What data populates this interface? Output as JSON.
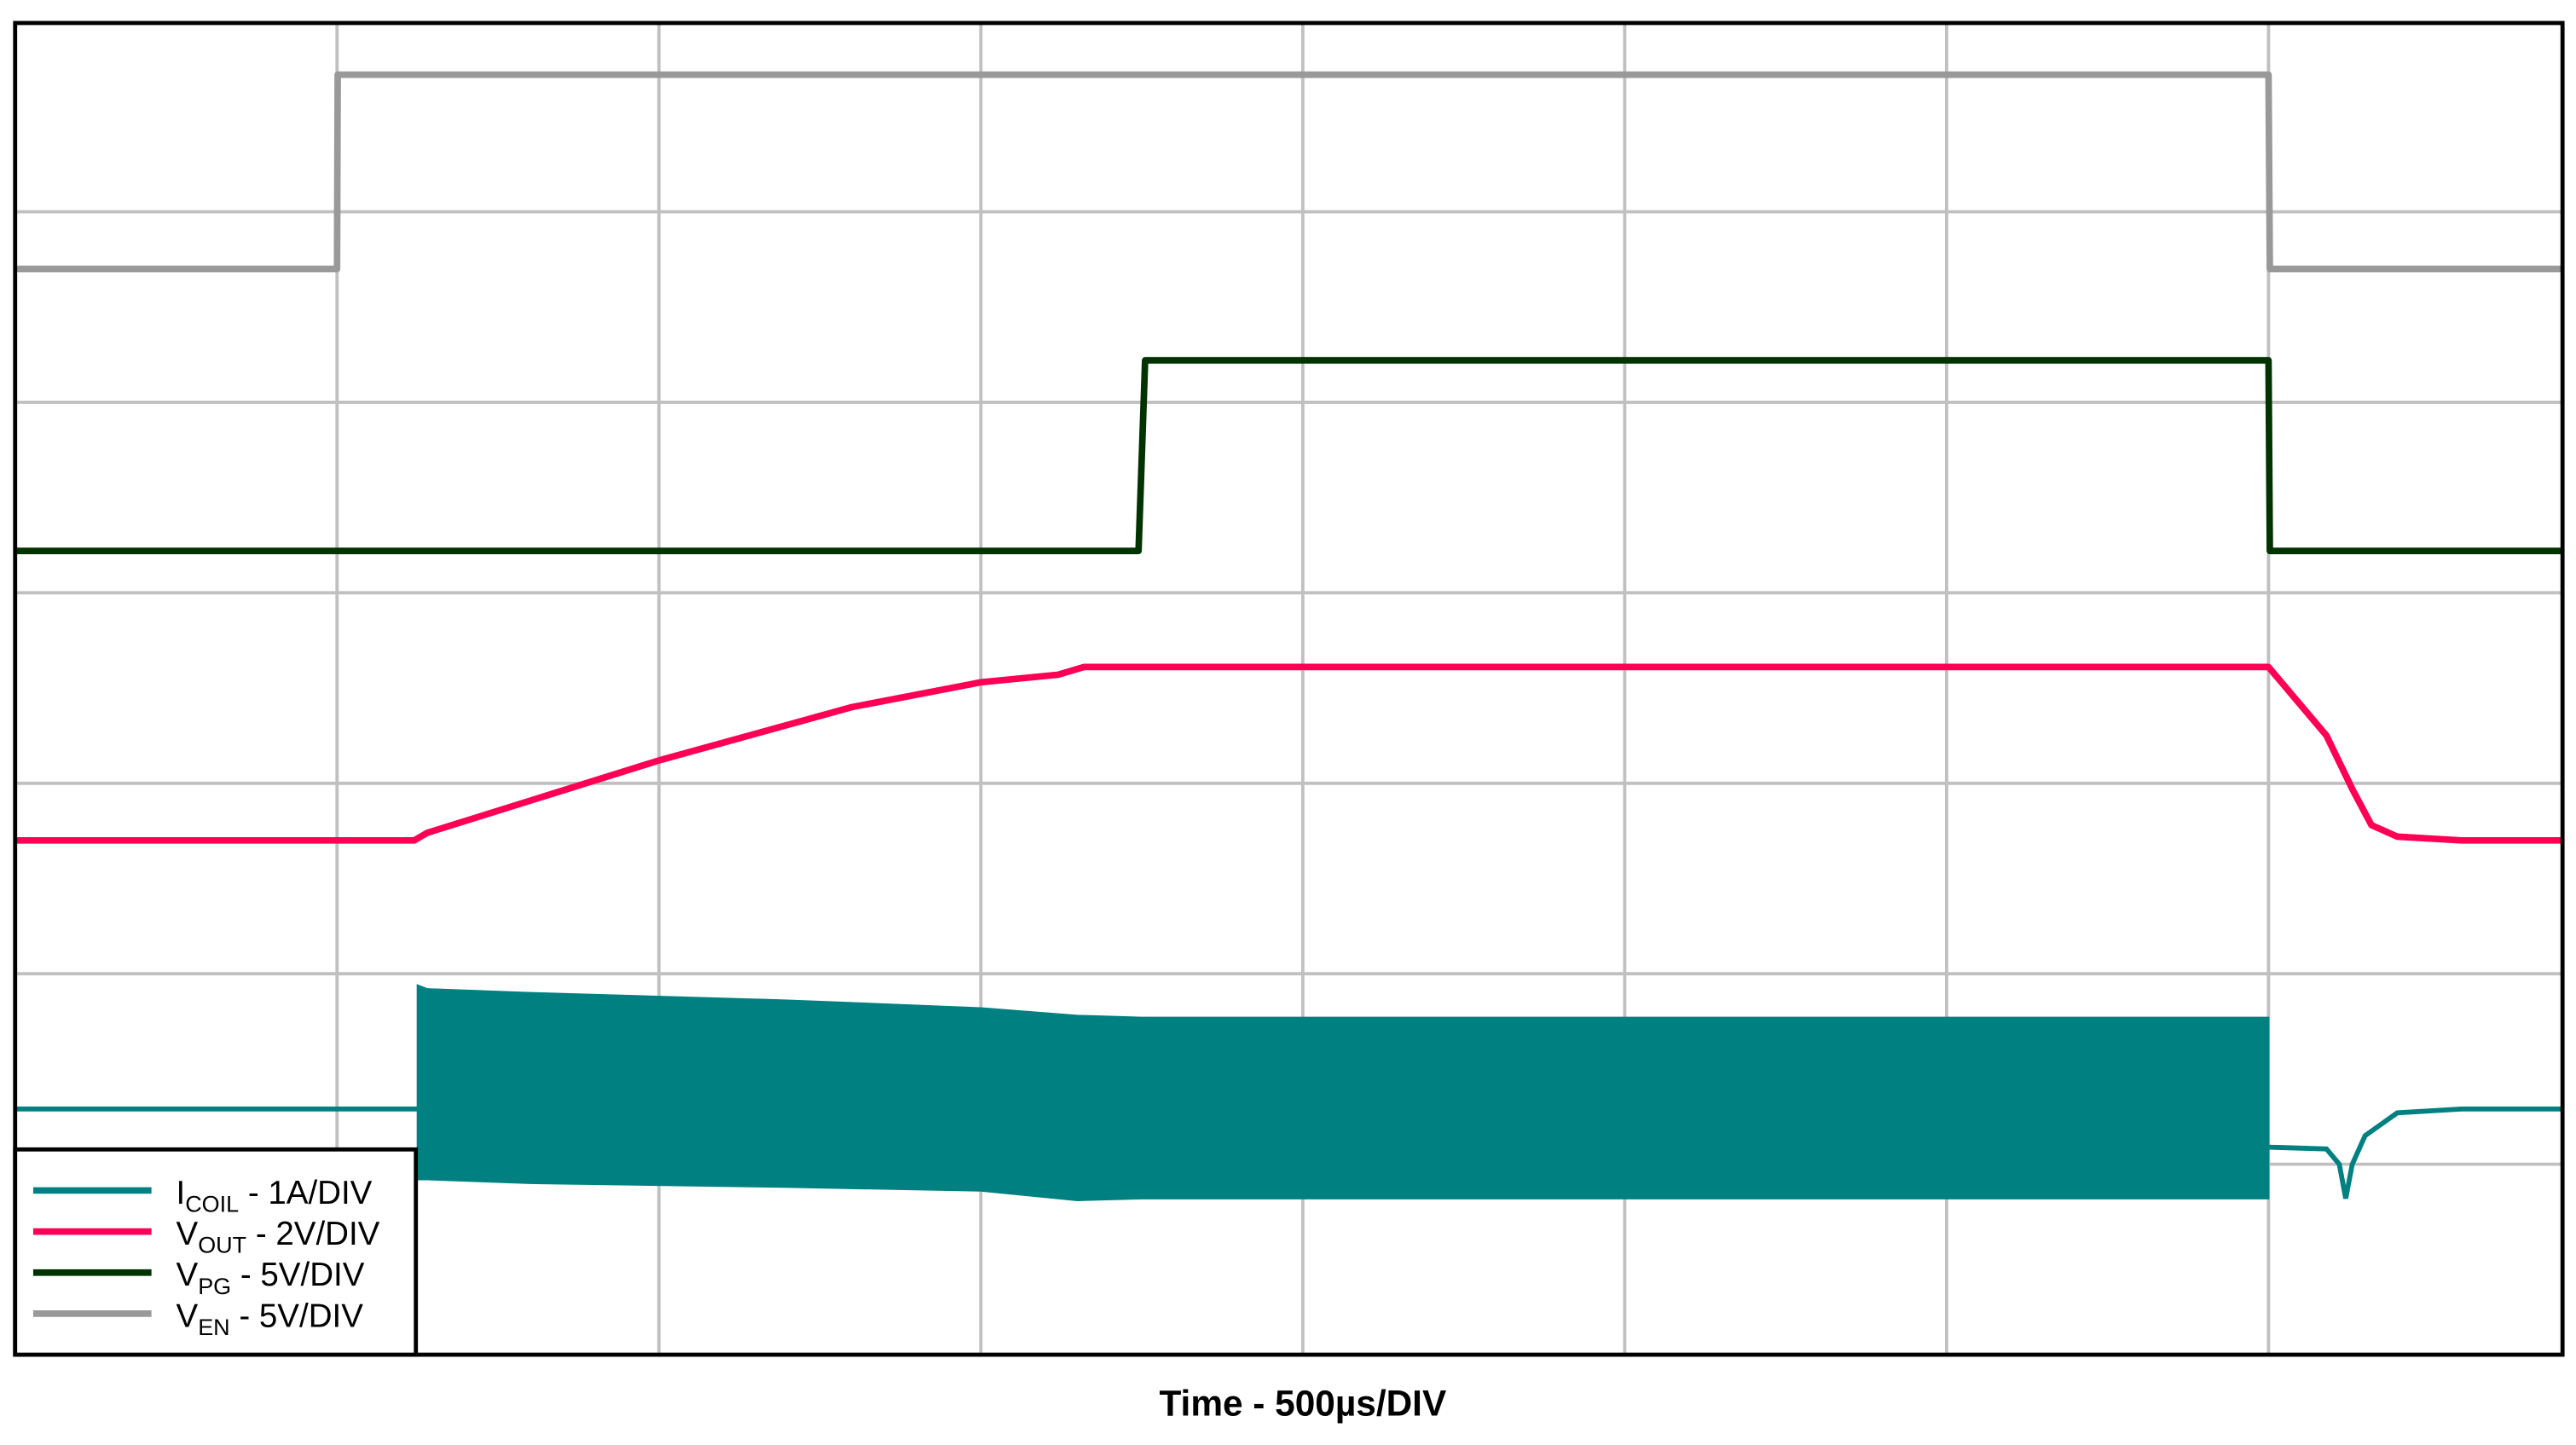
{
  "chart_data": {
    "type": "line",
    "title": "",
    "xlabel": "Time - 500µs/DIV",
    "ylabel": "",
    "x_units": "µs",
    "y_units": "divisions",
    "xlim": [
      0,
      3955
    ],
    "ylim": [
      0,
      7
    ],
    "grid": true,
    "grid_divisions": {
      "x": 8,
      "y": 7
    },
    "legend_position": "bottom-left",
    "series": [
      {
        "name": "I_COIL - 1A/DIV",
        "symbol": "I",
        "sub": "COIL",
        "scale": " - 1A/DIV",
        "color": "#008080",
        "kind": "switching-band",
        "baseline": [
          [
            0,
            1.29
          ],
          [
            625,
            1.29
          ]
        ],
        "band_x": [
          625,
          640,
          800,
          1200,
          1500,
          1650,
          1750,
          3500
        ],
        "band_top": [
          1.94,
          1.92,
          1.9,
          1.86,
          1.82,
          1.78,
          1.77,
          1.77
        ],
        "band_bottom": [
          0.92,
          0.92,
          0.9,
          0.88,
          0.86,
          0.81,
          0.82,
          0.82
        ],
        "tail": [
          [
            3500,
            1.09
          ],
          [
            3590,
            1.08
          ],
          [
            3610,
            1.0
          ],
          [
            3620,
            0.82
          ],
          [
            3630,
            1.0
          ],
          [
            3650,
            1.15
          ],
          [
            3700,
            1.27
          ],
          [
            3800,
            1.29
          ],
          [
            3955,
            1.29
          ]
        ]
      },
      {
        "name": "V_OUT - 2V/DIV",
        "symbol": "V",
        "sub": "OUT",
        "scale": " - 2V/DIV",
        "color": "#ff0055",
        "points": [
          [
            0,
            2.7
          ],
          [
            620,
            2.7
          ],
          [
            640,
            2.74
          ],
          [
            1000,
            3.12
          ],
          [
            1300,
            3.4
          ],
          [
            1500,
            3.53
          ],
          [
            1620,
            3.57
          ],
          [
            1660,
            3.61
          ],
          [
            3500,
            3.61
          ],
          [
            3590,
            3.25
          ],
          [
            3630,
            2.97
          ],
          [
            3660,
            2.78
          ],
          [
            3700,
            2.72
          ],
          [
            3800,
            2.7
          ],
          [
            3955,
            2.7
          ]
        ]
      },
      {
        "name": "V_PG - 5V/DIV",
        "symbol": "V",
        "sub": "PG",
        "scale": " - 5V/DIV",
        "color": "#003300",
        "points": [
          [
            0,
            4.22
          ],
          [
            1745,
            4.22
          ],
          [
            1755,
            5.22
          ],
          [
            3500,
            5.22
          ],
          [
            3502,
            4.22
          ],
          [
            3955,
            4.22
          ]
        ]
      },
      {
        "name": "V_EN - 5V/DIV",
        "symbol": "V",
        "sub": "EN",
        "scale": " - 5V/DIV",
        "color": "#999999",
        "points": [
          [
            0,
            5.7
          ],
          [
            500,
            5.7
          ],
          [
            501,
            6.72
          ],
          [
            3500,
            6.72
          ],
          [
            3502,
            5.7
          ],
          [
            3955,
            5.7
          ]
        ]
      }
    ]
  }
}
